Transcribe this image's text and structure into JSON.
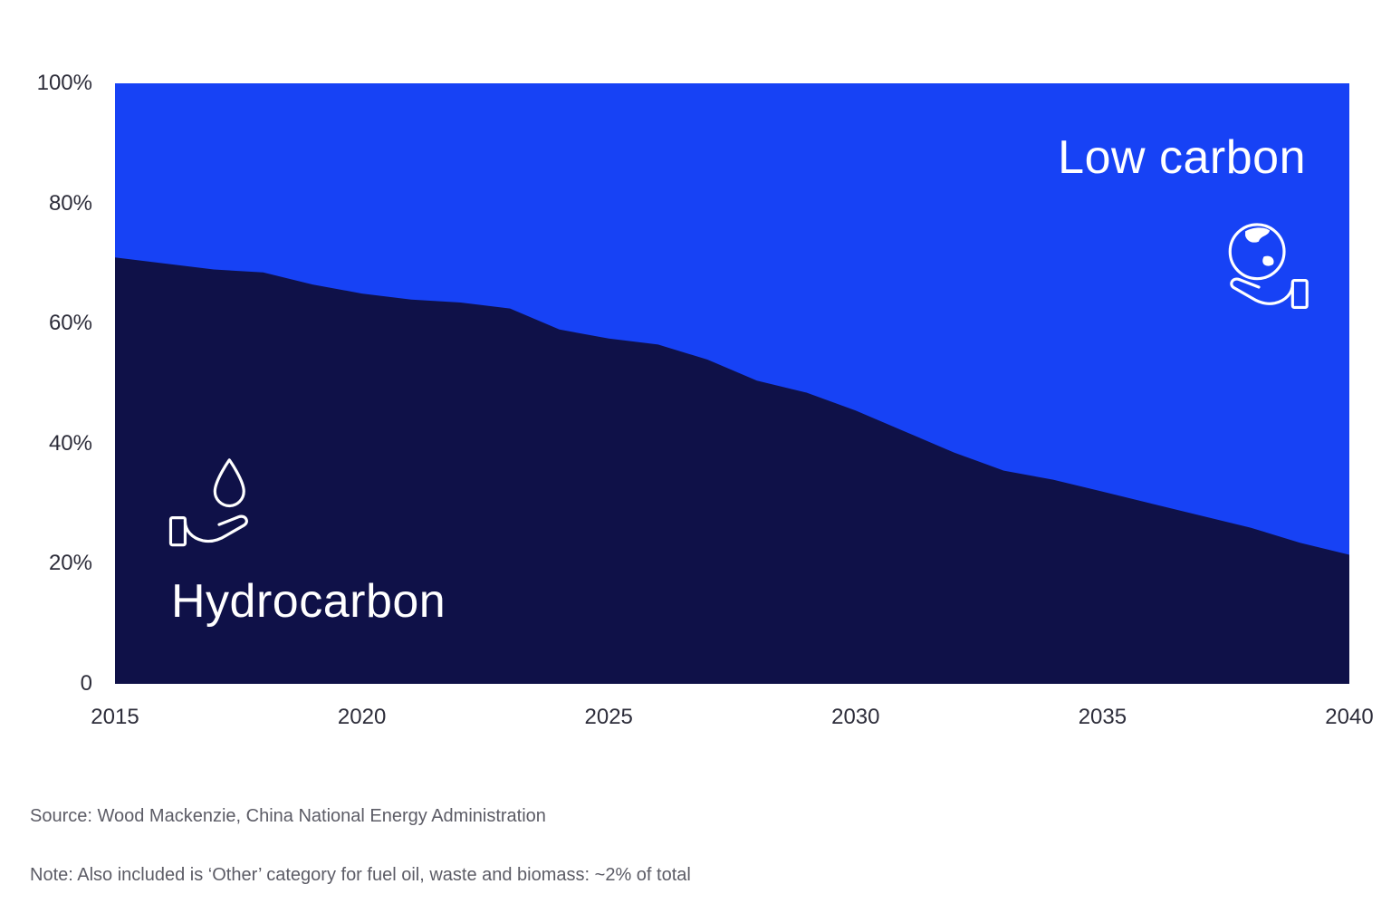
{
  "chart_data": {
    "type": "area",
    "stacked_percent": true,
    "title": "",
    "xlabel": "",
    "ylabel": "",
    "ylim": [
      0,
      100
    ],
    "grid": false,
    "legend_position": "labels-inside-plot",
    "x": [
      2015,
      2016,
      2017,
      2018,
      2019,
      2020,
      2021,
      2022,
      2023,
      2024,
      2025,
      2026,
      2027,
      2028,
      2029,
      2030,
      2031,
      2032,
      2033,
      2034,
      2035,
      2036,
      2037,
      2038,
      2039,
      2040
    ],
    "x_ticks": [
      "2015",
      "2020",
      "2025",
      "2030",
      "2035",
      "2040"
    ],
    "y_ticks": [
      "100%",
      "80%",
      "60%",
      "40%",
      "20%",
      "0"
    ],
    "series": [
      {
        "name": "Hydrocarbon",
        "color": "#0f1148",
        "values": [
          71,
          70,
          69,
          68.5,
          66.5,
          65,
          64,
          63.5,
          62.5,
          59,
          57.5,
          56.5,
          54,
          50.5,
          48.5,
          45.5,
          42,
          38.5,
          35.5,
          34,
          32,
          30,
          28,
          26,
          23.5,
          21.5
        ]
      },
      {
        "name": "Low carbon",
        "color": "#1742f5",
        "values": [
          29,
          30,
          31,
          31.5,
          33.5,
          35,
          36,
          36.5,
          37.5,
          41,
          42.5,
          43.5,
          46,
          49.5,
          51.5,
          54.5,
          58,
          61.5,
          64.5,
          66,
          68,
          70,
          72,
          74,
          76.5,
          78.5
        ]
      }
    ]
  },
  "labels": {
    "low_carbon": "Low carbon",
    "hydrocarbon": "Hydrocarbon"
  },
  "icons": {
    "low_carbon": "hand-holding-globe-icon",
    "hydrocarbon": "hand-holding-droplet-icon"
  },
  "footer": {
    "source": "Source: Wood Mackenzie, China National Energy Administration",
    "note": "Note: Also included is ‘Other’ category for fuel oil, waste and biomass: ~2% of total"
  },
  "colors": {
    "low_carbon_area": "#1742f5",
    "hydrocarbon_area": "#0f1148",
    "axis_text": "#2d2d3a",
    "footer_text": "#5c5c66",
    "background": "#ffffff"
  }
}
